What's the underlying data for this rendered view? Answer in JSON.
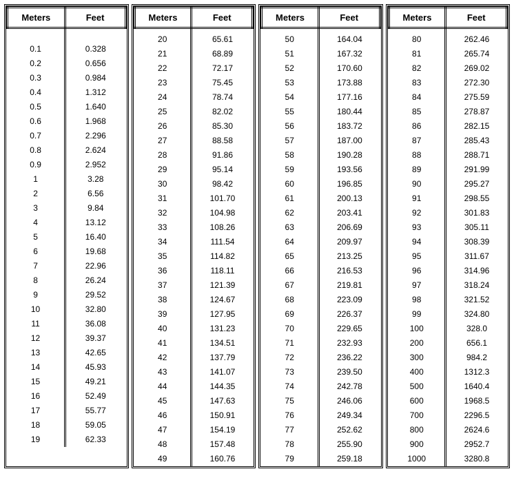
{
  "headers": {
    "meters": "Meters",
    "feet": "Feet"
  },
  "style": {
    "border_color": "#000000",
    "background_color": "#ffffff",
    "header_fontsize": 13,
    "cell_fontsize": 12,
    "font_family": "Arial, Helvetica, sans-serif",
    "col_meters_width": 72,
    "col_feet_width": 82
  },
  "tables": [
    {
      "rows": [
        [
          "0.1",
          "0.328"
        ],
        [
          "0.2",
          "0.656"
        ],
        [
          "0.3",
          "0.984"
        ],
        [
          "0.4",
          "1.312"
        ],
        [
          "0.5",
          "1.640"
        ],
        [
          "0.6",
          "1.968"
        ],
        [
          "0.7",
          "2.296"
        ],
        [
          "0.8",
          "2.624"
        ],
        [
          "0.9",
          "2.952"
        ],
        [
          "1",
          "3.28"
        ],
        [
          "2",
          "6.56"
        ],
        [
          "3",
          "9.84"
        ],
        [
          "4",
          "13.12"
        ],
        [
          "5",
          "16.40"
        ],
        [
          "6",
          "19.68"
        ],
        [
          "7",
          "22.96"
        ],
        [
          "8",
          "26.24"
        ],
        [
          "9",
          "29.52"
        ],
        [
          "10",
          "32.80"
        ],
        [
          "11",
          "36.08"
        ],
        [
          "12",
          "39.37"
        ],
        [
          "13",
          "42.65"
        ],
        [
          "14",
          "45.93"
        ],
        [
          "15",
          "49.21"
        ],
        [
          "16",
          "52.49"
        ],
        [
          "17",
          "55.77"
        ],
        [
          "18",
          "59.05"
        ],
        [
          "19",
          "62.33"
        ]
      ]
    },
    {
      "rows": [
        [
          "20",
          "65.61"
        ],
        [
          "21",
          "68.89"
        ],
        [
          "22",
          "72.17"
        ],
        [
          "23",
          "75.45"
        ],
        [
          "24",
          "78.74"
        ],
        [
          "25",
          "82.02"
        ],
        [
          "26",
          "85.30"
        ],
        [
          "27",
          "88.58"
        ],
        [
          "28",
          "91.86"
        ],
        [
          "29",
          "95.14"
        ],
        [
          "30",
          "98.42"
        ],
        [
          "31",
          "101.70"
        ],
        [
          "32",
          "104.98"
        ],
        [
          "33",
          "108.26"
        ],
        [
          "34",
          "111.54"
        ],
        [
          "35",
          "114.82"
        ],
        [
          "36",
          "118.11"
        ],
        [
          "37",
          "121.39"
        ],
        [
          "38",
          "124.67"
        ],
        [
          "39",
          "127.95"
        ],
        [
          "40",
          "131.23"
        ],
        [
          "41",
          "134.51"
        ],
        [
          "42",
          "137.79"
        ],
        [
          "43",
          "141.07"
        ],
        [
          "44",
          "144.35"
        ],
        [
          "45",
          "147.63"
        ],
        [
          "46",
          "150.91"
        ],
        [
          "47",
          "154.19"
        ],
        [
          "48",
          "157.48"
        ],
        [
          "49",
          "160.76"
        ]
      ]
    },
    {
      "rows": [
        [
          "50",
          "164.04"
        ],
        [
          "51",
          "167.32"
        ],
        [
          "52",
          "170.60"
        ],
        [
          "53",
          "173.88"
        ],
        [
          "54",
          "177.16"
        ],
        [
          "55",
          "180.44"
        ],
        [
          "56",
          "183.72"
        ],
        [
          "57",
          "187.00"
        ],
        [
          "58",
          "190.28"
        ],
        [
          "59",
          "193.56"
        ],
        [
          "60",
          "196.85"
        ],
        [
          "61",
          "200.13"
        ],
        [
          "62",
          "203.41"
        ],
        [
          "63",
          "206.69"
        ],
        [
          "64",
          "209.97"
        ],
        [
          "65",
          "213.25"
        ],
        [
          "66",
          "216.53"
        ],
        [
          "67",
          "219.81"
        ],
        [
          "68",
          "223.09"
        ],
        [
          "69",
          "226.37"
        ],
        [
          "70",
          "229.65"
        ],
        [
          "71",
          "232.93"
        ],
        [
          "72",
          "236.22"
        ],
        [
          "73",
          "239.50"
        ],
        [
          "74",
          "242.78"
        ],
        [
          "75",
          "246.06"
        ],
        [
          "76",
          "249.34"
        ],
        [
          "77",
          "252.62"
        ],
        [
          "78",
          "255.90"
        ],
        [
          "79",
          "259.18"
        ]
      ]
    },
    {
      "rows": [
        [
          "80",
          "262.46"
        ],
        [
          "81",
          "265.74"
        ],
        [
          "82",
          "269.02"
        ],
        [
          "83",
          "272.30"
        ],
        [
          "84",
          "275.59"
        ],
        [
          "85",
          "278.87"
        ],
        [
          "86",
          "282.15"
        ],
        [
          "87",
          "285.43"
        ],
        [
          "88",
          "288.71"
        ],
        [
          "89",
          "291.99"
        ],
        [
          "90",
          "295.27"
        ],
        [
          "91",
          "298.55"
        ],
        [
          "92",
          "301.83"
        ],
        [
          "93",
          "305.11"
        ],
        [
          "94",
          "308.39"
        ],
        [
          "95",
          "311.67"
        ],
        [
          "96",
          "314.96"
        ],
        [
          "97",
          "318.24"
        ],
        [
          "98",
          "321.52"
        ],
        [
          "99",
          "324.80"
        ],
        [
          "100",
          "328.0"
        ],
        [
          "200",
          "656.1"
        ],
        [
          "300",
          "984.2"
        ],
        [
          "400",
          "1312.3"
        ],
        [
          "500",
          "1640.4"
        ],
        [
          "600",
          "1968.5"
        ],
        [
          "700",
          "2296.5"
        ],
        [
          "800",
          "2624.6"
        ],
        [
          "900",
          "2952.7"
        ],
        [
          "1000",
          "3280.8"
        ]
      ]
    }
  ]
}
